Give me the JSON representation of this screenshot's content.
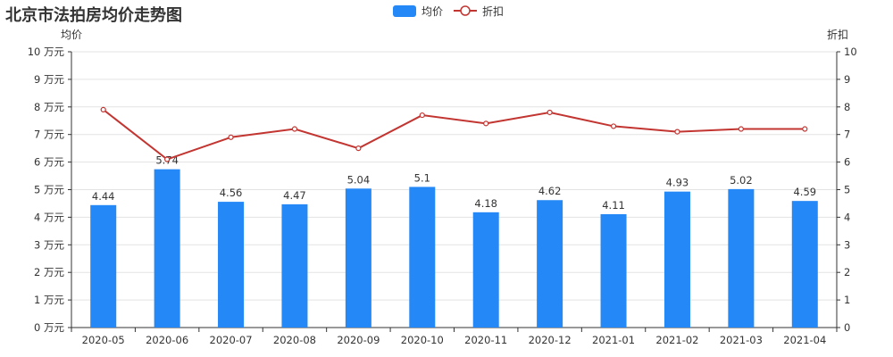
{
  "title": "北京市法拍房均价走势图",
  "legend": {
    "bar_label": "均价",
    "line_label": "折扣"
  },
  "axis": {
    "left_name": "均价",
    "right_name": "折扣"
  },
  "colors": {
    "bar": "#2488f7",
    "line": "#c23531",
    "grid": "#e3e3e3",
    "axis": "#333333"
  },
  "chart_data": {
    "type": "bar",
    "title": "北京市法拍房均价走势图",
    "categories": [
      "2020-05",
      "2020-06",
      "2020-07",
      "2020-08",
      "2020-09",
      "2020-10",
      "2020-11",
      "2020-12",
      "2021-01",
      "2021-02",
      "2021-03",
      "2021-04"
    ],
    "series": [
      {
        "name": "均价",
        "type": "bar",
        "axis": "left",
        "values": [
          4.44,
          5.74,
          4.56,
          4.47,
          5.04,
          5.1,
          4.18,
          4.62,
          4.11,
          4.93,
          5.02,
          4.59
        ]
      },
      {
        "name": "折扣",
        "type": "line",
        "axis": "right",
        "values": [
          7.9,
          6.1,
          6.9,
          7.2,
          6.5,
          7.7,
          7.4,
          7.8,
          7.3,
          7.1,
          7.2,
          7.2
        ]
      }
    ],
    "y_left": {
      "name": "均价",
      "range": [
        0,
        10
      ],
      "tick_labels": [
        "0 万元",
        "1 万元",
        "2 万元",
        "3 万元",
        "4 万元",
        "5 万元",
        "6 万元",
        "7 万元",
        "8 万元",
        "9 万元",
        "10 万元"
      ]
    },
    "y_right": {
      "name": "折扣",
      "range": [
        0,
        10
      ],
      "tick_labels": [
        "0",
        "1",
        "2",
        "3",
        "4",
        "5",
        "6",
        "7",
        "8",
        "9",
        "10"
      ]
    },
    "grid": true,
    "legend_position": "top-center"
  }
}
